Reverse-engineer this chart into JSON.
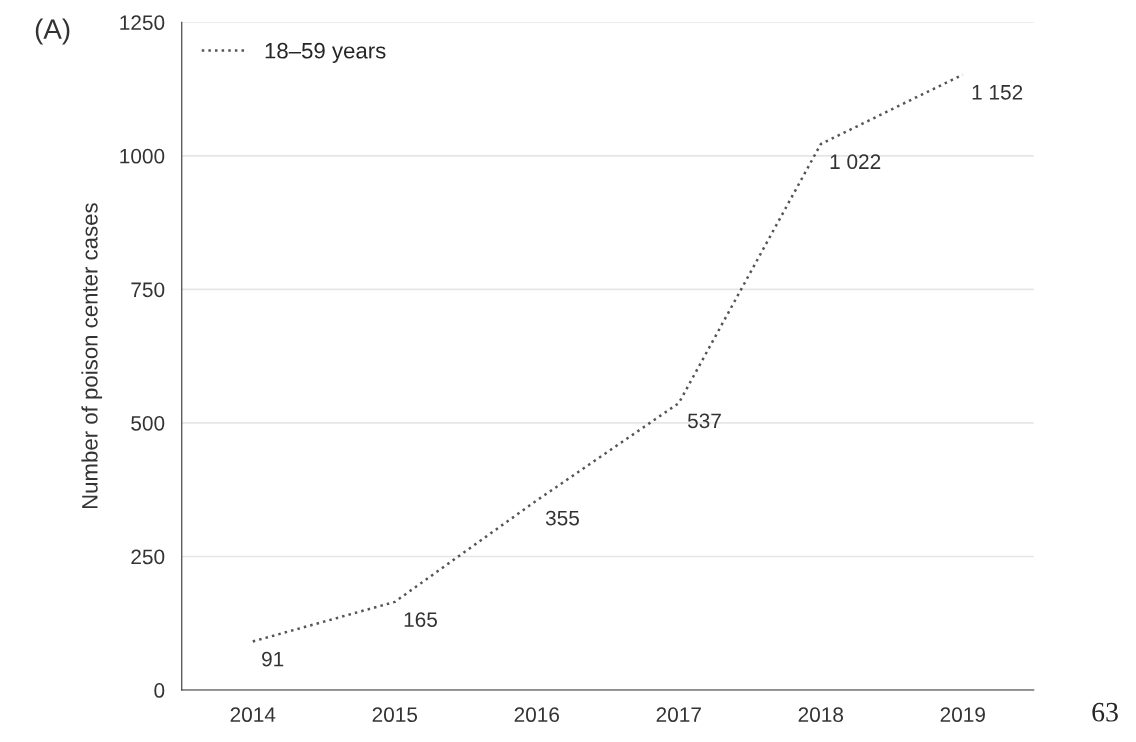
{
  "chart_data": {
    "type": "line",
    "ylabel": "Number of poison center cases",
    "categories": [
      "2014",
      "2015",
      "2016",
      "2017",
      "2018",
      "2019"
    ],
    "series": [
      {
        "name": "18–59 years",
        "color": "#555555",
        "values": [
          91,
          165,
          355,
          537,
          1022,
          1152
        ],
        "value_labels": [
          "91",
          "165",
          "355",
          "537",
          "1 022",
          "1 152"
        ]
      }
    ],
    "ylim": [
      0,
      1250
    ],
    "yticks": [
      0,
      250,
      500,
      750,
      1000,
      1250
    ],
    "grid": "y",
    "legend": "top left",
    "line_style": "dotted",
    "marker": "none",
    "annotations": [
      "(A)",
      "63"
    ]
  }
}
